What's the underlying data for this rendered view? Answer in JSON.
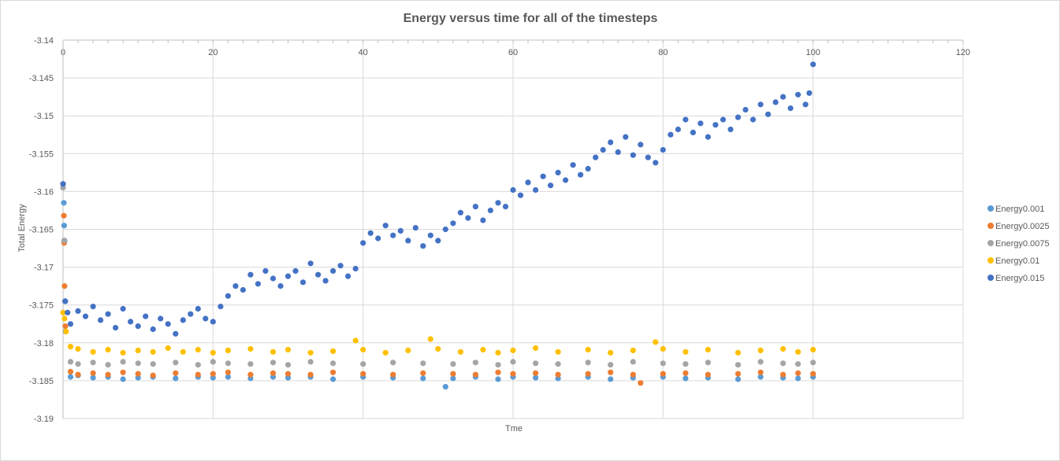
{
  "chart_data": {
    "type": "scatter",
    "title": "Energy versus time for all of the timesteps",
    "xlabel": "Tme",
    "ylabel": "Total Energy",
    "xlim": [
      0,
      120
    ],
    "ylim": [
      -3.19,
      -3.14
    ],
    "x_ticks": [
      "0",
      "20",
      "40",
      "60",
      "80",
      "100",
      "120"
    ],
    "y_ticks": [
      "-3.14",
      "-3.145",
      "-3.15",
      "-3.155",
      "-3.16",
      "-3.165",
      "-3.17",
      "-3.175",
      "-3.18",
      "-3.185",
      "-3.19"
    ],
    "x_axis_position": "top",
    "grid": true,
    "legend_position": "right",
    "series": [
      {
        "name": "Energy0.001",
        "color": "#5b9bd5",
        "points": [
          [
            0,
            -3.159
          ],
          [
            0.1,
            -3.1615
          ],
          [
            0.15,
            -3.1645
          ],
          [
            0.2,
            -3.1665
          ],
          [
            0.25,
            -3.1745
          ],
          [
            0.35,
            -3.1785
          ],
          [
            1,
            -3.1845
          ],
          [
            2,
            -3.1843
          ],
          [
            4,
            -3.1846
          ],
          [
            6,
            -3.1845
          ],
          [
            8,
            -3.1848
          ],
          [
            10,
            -3.1846
          ],
          [
            12,
            -3.1845
          ],
          [
            15,
            -3.1847
          ],
          [
            18,
            -3.1845
          ],
          [
            20,
            -3.1846
          ],
          [
            22,
            -3.1845
          ],
          [
            25,
            -3.1847
          ],
          [
            28,
            -3.1845
          ],
          [
            30,
            -3.1846
          ],
          [
            33,
            -3.1845
          ],
          [
            36,
            -3.1848
          ],
          [
            40,
            -3.1845
          ],
          [
            44,
            -3.1846
          ],
          [
            48,
            -3.1847
          ],
          [
            51,
            -3.1858
          ],
          [
            52,
            -3.1847
          ],
          [
            55,
            -3.1845
          ],
          [
            58,
            -3.1848
          ],
          [
            60,
            -3.1845
          ],
          [
            63,
            -3.1846
          ],
          [
            66,
            -3.1847
          ],
          [
            70,
            -3.1845
          ],
          [
            73,
            -3.1848
          ],
          [
            76,
            -3.1846
          ],
          [
            80,
            -3.1845
          ],
          [
            83,
            -3.1847
          ],
          [
            86,
            -3.1846
          ],
          [
            90,
            -3.1848
          ],
          [
            93,
            -3.1845
          ],
          [
            96,
            -3.1846
          ],
          [
            98,
            -3.1847
          ],
          [
            100,
            -3.1845
          ]
        ]
      },
      {
        "name": "Energy0.0025",
        "color": "#ed7d31",
        "points": [
          [
            0,
            -3.159
          ],
          [
            0.1,
            -3.1632
          ],
          [
            0.15,
            -3.1668
          ],
          [
            0.2,
            -3.1725
          ],
          [
            0.3,
            -3.1778
          ],
          [
            1,
            -3.1838
          ],
          [
            2,
            -3.1842
          ],
          [
            4,
            -3.184
          ],
          [
            6,
            -3.1842
          ],
          [
            8,
            -3.1839
          ],
          [
            10,
            -3.1841
          ],
          [
            12,
            -3.1843
          ],
          [
            15,
            -3.184
          ],
          [
            18,
            -3.1842
          ],
          [
            20,
            -3.1841
          ],
          [
            22,
            -3.1839
          ],
          [
            25,
            -3.1842
          ],
          [
            28,
            -3.184
          ],
          [
            30,
            -3.1841
          ],
          [
            33,
            -3.1842
          ],
          [
            36,
            -3.1839
          ],
          [
            40,
            -3.1841
          ],
          [
            44,
            -3.1842
          ],
          [
            48,
            -3.184
          ],
          [
            52,
            -3.1841
          ],
          [
            55,
            -3.1842
          ],
          [
            58,
            -3.1839
          ],
          [
            60,
            -3.1841
          ],
          [
            63,
            -3.184
          ],
          [
            66,
            -3.1842
          ],
          [
            70,
            -3.1841
          ],
          [
            73,
            -3.1839
          ],
          [
            76,
            -3.1842
          ],
          [
            77,
            -3.1853
          ],
          [
            80,
            -3.1841
          ],
          [
            83,
            -3.184
          ],
          [
            86,
            -3.1842
          ],
          [
            90,
            -3.1841
          ],
          [
            93,
            -3.1839
          ],
          [
            96,
            -3.1842
          ],
          [
            98,
            -3.184
          ],
          [
            100,
            -3.1841
          ]
        ]
      },
      {
        "name": "Energy0.0075",
        "color": "#a5a5a5",
        "points": [
          [
            0,
            -3.1595
          ],
          [
            0.15,
            -3.1665
          ],
          [
            0.25,
            -3.1745
          ],
          [
            1,
            -3.1825
          ],
          [
            2,
            -3.1828
          ],
          [
            4,
            -3.1826
          ],
          [
            6,
            -3.1829
          ],
          [
            8,
            -3.1825
          ],
          [
            10,
            -3.1827
          ],
          [
            12,
            -3.1828
          ],
          [
            15,
            -3.1826
          ],
          [
            18,
            -3.1829
          ],
          [
            20,
            -3.1825
          ],
          [
            22,
            -3.1827
          ],
          [
            25,
            -3.1828
          ],
          [
            28,
            -3.1826
          ],
          [
            30,
            -3.1829
          ],
          [
            33,
            -3.1825
          ],
          [
            36,
            -3.1827
          ],
          [
            40,
            -3.1828
          ],
          [
            44,
            -3.1826
          ],
          [
            48,
            -3.1827
          ],
          [
            52,
            -3.1828
          ],
          [
            55,
            -3.1826
          ],
          [
            58,
            -3.1829
          ],
          [
            60,
            -3.1825
          ],
          [
            63,
            -3.1827
          ],
          [
            66,
            -3.1828
          ],
          [
            70,
            -3.1826
          ],
          [
            73,
            -3.1829
          ],
          [
            76,
            -3.1825
          ],
          [
            80,
            -3.1827
          ],
          [
            83,
            -3.1828
          ],
          [
            86,
            -3.1826
          ],
          [
            90,
            -3.1829
          ],
          [
            93,
            -3.1825
          ],
          [
            96,
            -3.1827
          ],
          [
            98,
            -3.1828
          ],
          [
            100,
            -3.1826
          ]
        ]
      },
      {
        "name": "Energy0.01",
        "color": "#ffc000",
        "points": [
          [
            0,
            -3.176
          ],
          [
            0.2,
            -3.1768
          ],
          [
            0.4,
            -3.1785
          ],
          [
            1,
            -3.1805
          ],
          [
            2,
            -3.1808
          ],
          [
            4,
            -3.1812
          ],
          [
            6,
            -3.1809
          ],
          [
            8,
            -3.1813
          ],
          [
            10,
            -3.181
          ],
          [
            12,
            -3.1812
          ],
          [
            14,
            -3.1807
          ],
          [
            16,
            -3.1812
          ],
          [
            18,
            -3.1809
          ],
          [
            20,
            -3.1813
          ],
          [
            22,
            -3.181
          ],
          [
            25,
            -3.1808
          ],
          [
            28,
            -3.1812
          ],
          [
            30,
            -3.1809
          ],
          [
            33,
            -3.1813
          ],
          [
            36,
            -3.1811
          ],
          [
            39,
            -3.1797
          ],
          [
            40,
            -3.1809
          ],
          [
            43,
            -3.1813
          ],
          [
            46,
            -3.181
          ],
          [
            49,
            -3.1795
          ],
          [
            50,
            -3.1808
          ],
          [
            53,
            -3.1812
          ],
          [
            56,
            -3.1809
          ],
          [
            58,
            -3.1813
          ],
          [
            60,
            -3.181
          ],
          [
            63,
            -3.1807
          ],
          [
            66,
            -3.1812
          ],
          [
            70,
            -3.1809
          ],
          [
            73,
            -3.1813
          ],
          [
            76,
            -3.181
          ],
          [
            79,
            -3.1799
          ],
          [
            80,
            -3.1808
          ],
          [
            83,
            -3.1812
          ],
          [
            86,
            -3.1809
          ],
          [
            90,
            -3.1813
          ],
          [
            93,
            -3.181
          ],
          [
            96,
            -3.1808
          ],
          [
            98,
            -3.1812
          ],
          [
            100,
            -3.1809
          ]
        ]
      },
      {
        "name": "Energy0.015",
        "color": "#4472c4",
        "points": [
          [
            0,
            -3.159
          ],
          [
            0.3,
            -3.1745
          ],
          [
            0.6,
            -3.176
          ],
          [
            1,
            -3.1775
          ],
          [
            2,
            -3.1758
          ],
          [
            3,
            -3.1765
          ],
          [
            4,
            -3.1752
          ],
          [
            5,
            -3.177
          ],
          [
            6,
            -3.1762
          ],
          [
            7,
            -3.178
          ],
          [
            8,
            -3.1755
          ],
          [
            9,
            -3.1772
          ],
          [
            10,
            -3.1778
          ],
          [
            11,
            -3.1765
          ],
          [
            12,
            -3.1782
          ],
          [
            13,
            -3.1768
          ],
          [
            14,
            -3.1775
          ],
          [
            15,
            -3.1788
          ],
          [
            16,
            -3.177
          ],
          [
            17,
            -3.1762
          ],
          [
            18,
            -3.1755
          ],
          [
            19,
            -3.1768
          ],
          [
            20,
            -3.1772
          ],
          [
            21,
            -3.1752
          ],
          [
            22,
            -3.1738
          ],
          [
            23,
            -3.1725
          ],
          [
            24,
            -3.173
          ],
          [
            25,
            -3.171
          ],
          [
            26,
            -3.1722
          ],
          [
            27,
            -3.1705
          ],
          [
            28,
            -3.1715
          ],
          [
            29,
            -3.1725
          ],
          [
            30,
            -3.1712
          ],
          [
            31,
            -3.1705
          ],
          [
            32,
            -3.172
          ],
          [
            33,
            -3.1695
          ],
          [
            34,
            -3.171
          ],
          [
            35,
            -3.1718
          ],
          [
            36,
            -3.1705
          ],
          [
            37,
            -3.1698
          ],
          [
            38,
            -3.1712
          ],
          [
            39,
            -3.1702
          ],
          [
            40,
            -3.1668
          ],
          [
            41,
            -3.1655
          ],
          [
            42,
            -3.1662
          ],
          [
            43,
            -3.1645
          ],
          [
            44,
            -3.1658
          ],
          [
            45,
            -3.1652
          ],
          [
            46,
            -3.1665
          ],
          [
            47,
            -3.1648
          ],
          [
            48,
            -3.1672
          ],
          [
            49,
            -3.1658
          ],
          [
            50,
            -3.1665
          ],
          [
            51,
            -3.165
          ],
          [
            52,
            -3.1642
          ],
          [
            53,
            -3.1628
          ],
          [
            54,
            -3.1635
          ],
          [
            55,
            -3.162
          ],
          [
            56,
            -3.1638
          ],
          [
            57,
            -3.1625
          ],
          [
            58,
            -3.1615
          ],
          [
            59,
            -3.162
          ],
          [
            60,
            -3.1598
          ],
          [
            61,
            -3.1605
          ],
          [
            62,
            -3.1588
          ],
          [
            63,
            -3.1598
          ],
          [
            64,
            -3.158
          ],
          [
            65,
            -3.1592
          ],
          [
            66,
            -3.1575
          ],
          [
            67,
            -3.1585
          ],
          [
            68,
            -3.1565
          ],
          [
            69,
            -3.1578
          ],
          [
            70,
            -3.157
          ],
          [
            71,
            -3.1555
          ],
          [
            72,
            -3.1545
          ],
          [
            73,
            -3.1535
          ],
          [
            74,
            -3.1548
          ],
          [
            75,
            -3.1528
          ],
          [
            76,
            -3.1552
          ],
          [
            77,
            -3.1538
          ],
          [
            78,
            -3.1555
          ],
          [
            79,
            -3.1562
          ],
          [
            80,
            -3.1545
          ],
          [
            81,
            -3.1525
          ],
          [
            82,
            -3.1518
          ],
          [
            83,
            -3.1505
          ],
          [
            84,
            -3.1522
          ],
          [
            85,
            -3.151
          ],
          [
            86,
            -3.1528
          ],
          [
            87,
            -3.1512
          ],
          [
            88,
            -3.1505
          ],
          [
            89,
            -3.1518
          ],
          [
            90,
            -3.1502
          ],
          [
            91,
            -3.1492
          ],
          [
            92,
            -3.1505
          ],
          [
            93,
            -3.1485
          ],
          [
            94,
            -3.1498
          ],
          [
            95,
            -3.1482
          ],
          [
            96,
            -3.1475
          ],
          [
            97,
            -3.149
          ],
          [
            98,
            -3.1472
          ],
          [
            99,
            -3.1485
          ],
          [
            99.5,
            -3.147
          ],
          [
            100,
            -3.1432
          ]
        ]
      }
    ]
  }
}
